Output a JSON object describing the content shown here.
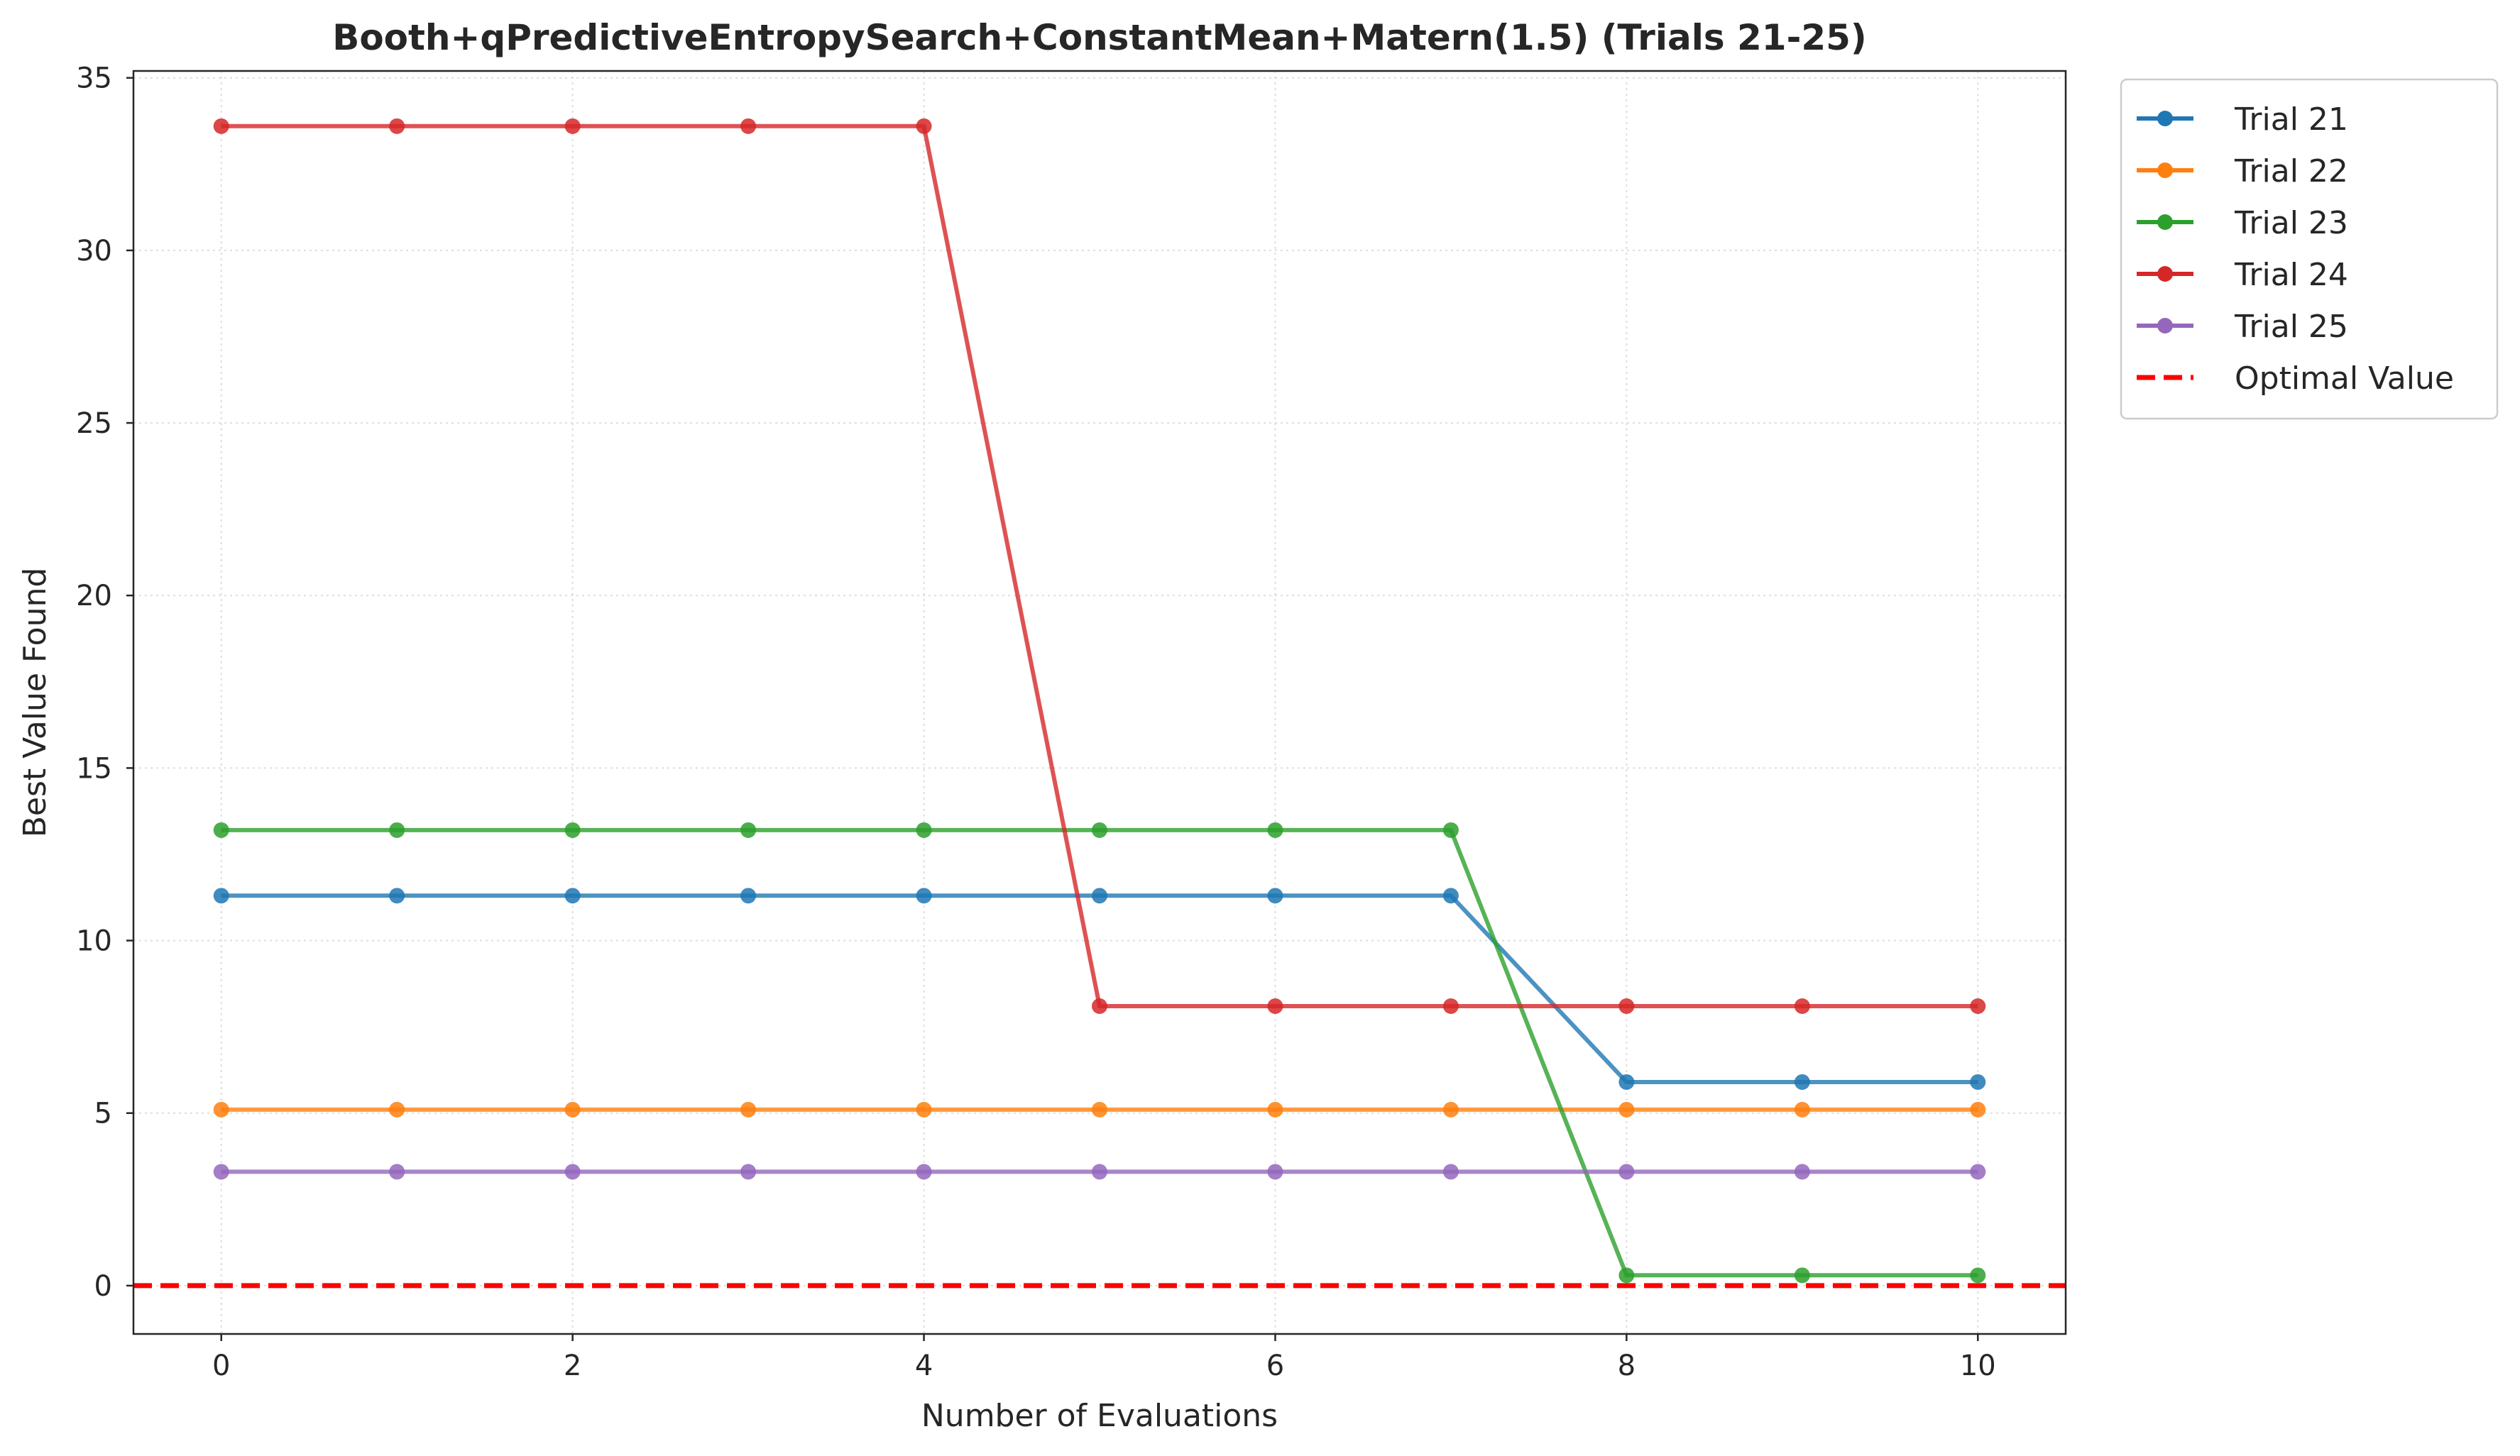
{
  "chart_data": {
    "type": "line",
    "title": "Booth+qPredictiveEntropySearch+ConstantMean+Matern(1.5) (Trials 21-25)",
    "xlabel": "Number of Evaluations",
    "ylabel": "Best Value Found",
    "xlim": [
      -0.5,
      10.5
    ],
    "ylim": [
      -1.4,
      35.2
    ],
    "xticks": [
      0,
      2,
      4,
      6,
      8,
      10
    ],
    "yticks": [
      0,
      5,
      10,
      15,
      20,
      25,
      30,
      35
    ],
    "grid": true,
    "legend_position": "outside top-right",
    "x": [
      0,
      1,
      2,
      3,
      4,
      5,
      6,
      7,
      8,
      9,
      10
    ],
    "series": [
      {
        "name": "Trial 21",
        "color": "#1f77b4",
        "values": [
          11.3,
          11.3,
          11.3,
          11.3,
          11.3,
          11.3,
          11.3,
          11.3,
          5.9,
          5.9,
          5.9
        ]
      },
      {
        "name": "Trial 22",
        "color": "#ff7f0e",
        "values": [
          5.1,
          5.1,
          5.1,
          5.1,
          5.1,
          5.1,
          5.1,
          5.1,
          5.1,
          5.1,
          5.1
        ]
      },
      {
        "name": "Trial 23",
        "color": "#2ca02c",
        "values": [
          13.2,
          13.2,
          13.2,
          13.2,
          13.2,
          13.2,
          13.2,
          13.2,
          0.3,
          0.3,
          0.3
        ]
      },
      {
        "name": "Trial 24",
        "color": "#d62728",
        "values": [
          33.6,
          33.6,
          33.6,
          33.6,
          33.6,
          8.1,
          8.1,
          8.1,
          8.1,
          8.1,
          8.1
        ]
      },
      {
        "name": "Trial 25",
        "color": "#9467bd",
        "values": [
          3.3,
          3.3,
          3.3,
          3.3,
          3.3,
          3.3,
          3.3,
          3.3,
          3.3,
          3.3,
          3.3
        ]
      }
    ],
    "reference_line": {
      "name": "Optimal Value",
      "y": 0,
      "color": "#ff0000",
      "style": "dashed"
    }
  }
}
